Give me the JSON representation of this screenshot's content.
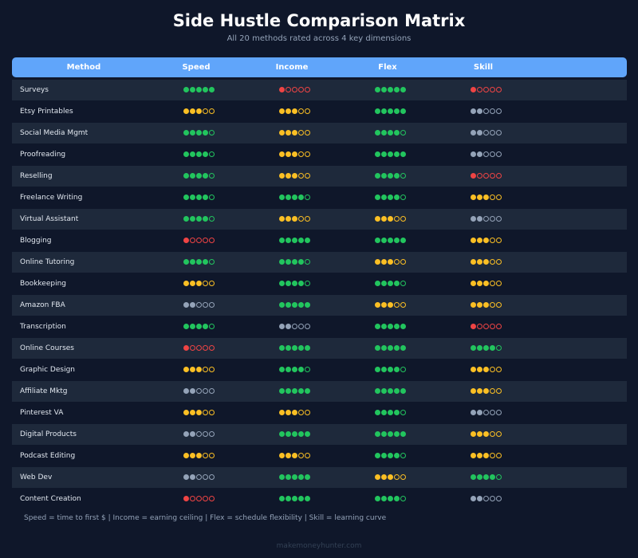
{
  "title": "Side Hustle Comparison Matrix",
  "subtitle": "All 20 methods rated across 4 key dimensions",
  "colors": {
    "header_bg": "#60a5fa",
    "green": "#22c55e",
    "yellow": "#fbbf24",
    "gray": "#94a3b8",
    "red": "#ef4444",
    "row_alt": "#1e293b",
    "background": "#0f172a"
  },
  "chart_data": {
    "type": "table",
    "columns": [
      "Method",
      "Speed",
      "Income",
      "Flex",
      "Skill"
    ],
    "scale_max": 5,
    "rows": [
      {
        "method": "Surveys",
        "speed": 5,
        "income": 1,
        "flex": 5,
        "skill": 1
      },
      {
        "method": "Etsy Printables",
        "speed": 3,
        "income": 3,
        "flex": 5,
        "skill": 2
      },
      {
        "method": "Social Media Mgmt",
        "speed": 4,
        "income": 3,
        "flex": 4,
        "skill": 2
      },
      {
        "method": "Proofreading",
        "speed": 4,
        "income": 3,
        "flex": 5,
        "skill": 2
      },
      {
        "method": "Reselling",
        "speed": 4,
        "income": 3,
        "flex": 4,
        "skill": 1
      },
      {
        "method": "Freelance Writing",
        "speed": 4,
        "income": 4,
        "flex": 4,
        "skill": 3
      },
      {
        "method": "Virtual Assistant",
        "speed": 4,
        "income": 3,
        "flex": 3,
        "skill": 2
      },
      {
        "method": "Blogging",
        "speed": 1,
        "income": 5,
        "flex": 5,
        "skill": 3
      },
      {
        "method": "Online Tutoring",
        "speed": 4,
        "income": 4,
        "flex": 3,
        "skill": 3
      },
      {
        "method": "Bookkeeping",
        "speed": 3,
        "income": 4,
        "flex": 4,
        "skill": 3
      },
      {
        "method": "Amazon FBA",
        "speed": 2,
        "income": 5,
        "flex": 3,
        "skill": 3
      },
      {
        "method": "Transcription",
        "speed": 4,
        "income": 2,
        "flex": 5,
        "skill": 1
      },
      {
        "method": "Online Courses",
        "speed": 1,
        "income": 5,
        "flex": 5,
        "skill": 4
      },
      {
        "method": "Graphic Design",
        "speed": 3,
        "income": 4,
        "flex": 4,
        "skill": 3
      },
      {
        "method": "Affiliate Mktg",
        "speed": 2,
        "income": 5,
        "flex": 5,
        "skill": 3
      },
      {
        "method": "Pinterest VA",
        "speed": 3,
        "income": 3,
        "flex": 4,
        "skill": 2
      },
      {
        "method": "Digital Products",
        "speed": 2,
        "income": 5,
        "flex": 5,
        "skill": 3
      },
      {
        "method": "Podcast Editing",
        "speed": 3,
        "income": 3,
        "flex": 4,
        "skill": 3
      },
      {
        "method": "Web Dev",
        "speed": 2,
        "income": 5,
        "flex": 3,
        "skill": 4
      },
      {
        "method": "Content Creation",
        "speed": 1,
        "income": 5,
        "flex": 4,
        "skill": 2
      }
    ]
  },
  "footnote": "Speed = time to first $  |  Income = earning ceiling  |  Flex = schedule flexibility  |  Skill = learning curve",
  "footer": "makemoneyhunter.com"
}
